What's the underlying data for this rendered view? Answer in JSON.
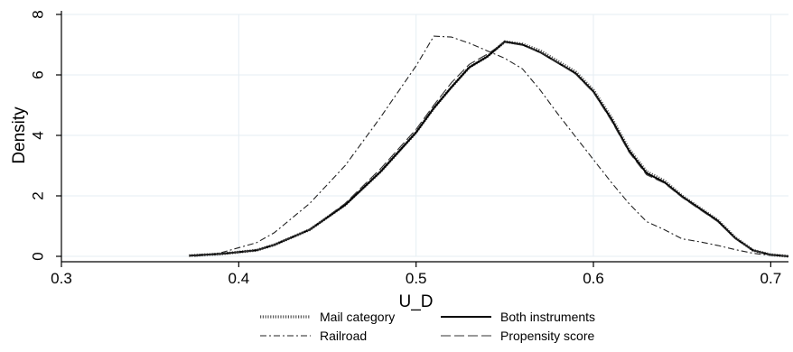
{
  "chart_data": {
    "type": "line",
    "title": "",
    "xlabel": "U_D",
    "ylabel": "Density",
    "xlim": [
      0.3,
      0.71
    ],
    "ylim": [
      0,
      8
    ],
    "x_ticks": [
      "0.3",
      "0.4",
      "0.5",
      "0.6",
      "0.7"
    ],
    "y_ticks": [
      "0",
      "2",
      "4",
      "6",
      "8"
    ],
    "grid": true,
    "legend_position": "bottom",
    "series": [
      {
        "name": "Mail category",
        "style": "dotted",
        "color": "#555555",
        "points": [
          [
            0.372,
            0.02
          ],
          [
            0.39,
            0.08
          ],
          [
            0.41,
            0.2
          ],
          [
            0.42,
            0.38
          ],
          [
            0.44,
            0.88
          ],
          [
            0.46,
            1.7
          ],
          [
            0.48,
            2.8
          ],
          [
            0.5,
            4.1
          ],
          [
            0.51,
            4.9
          ],
          [
            0.52,
            5.6
          ],
          [
            0.53,
            6.25
          ],
          [
            0.54,
            6.6
          ],
          [
            0.55,
            7.1
          ],
          [
            0.56,
            7.02
          ],
          [
            0.57,
            6.8
          ],
          [
            0.58,
            6.45
          ],
          [
            0.59,
            6.1
          ],
          [
            0.6,
            5.5
          ],
          [
            0.61,
            4.6
          ],
          [
            0.62,
            3.55
          ],
          [
            0.63,
            2.8
          ],
          [
            0.64,
            2.5
          ],
          [
            0.65,
            2.0
          ],
          [
            0.66,
            1.6
          ],
          [
            0.67,
            1.2
          ],
          [
            0.68,
            0.62
          ],
          [
            0.69,
            0.2
          ],
          [
            0.7,
            0.05
          ],
          [
            0.71,
            0.0
          ]
        ]
      },
      {
        "name": "Both instruments",
        "style": "solid",
        "color": "#000000",
        "points": [
          [
            0.372,
            0.02
          ],
          [
            0.39,
            0.08
          ],
          [
            0.41,
            0.2
          ],
          [
            0.42,
            0.38
          ],
          [
            0.44,
            0.88
          ],
          [
            0.46,
            1.7
          ],
          [
            0.48,
            2.8
          ],
          [
            0.5,
            4.1
          ],
          [
            0.51,
            4.9
          ],
          [
            0.52,
            5.6
          ],
          [
            0.53,
            6.25
          ],
          [
            0.54,
            6.6
          ],
          [
            0.55,
            7.1
          ],
          [
            0.56,
            7.0
          ],
          [
            0.57,
            6.75
          ],
          [
            0.58,
            6.4
          ],
          [
            0.59,
            6.05
          ],
          [
            0.6,
            5.45
          ],
          [
            0.61,
            4.55
          ],
          [
            0.62,
            3.5
          ],
          [
            0.63,
            2.75
          ],
          [
            0.64,
            2.45
          ],
          [
            0.65,
            1.98
          ],
          [
            0.66,
            1.58
          ],
          [
            0.67,
            1.18
          ],
          [
            0.68,
            0.6
          ],
          [
            0.69,
            0.2
          ],
          [
            0.7,
            0.05
          ],
          [
            0.71,
            0.0
          ]
        ]
      },
      {
        "name": "Railroad",
        "style": "dashdot",
        "color": "#222222",
        "points": [
          [
            0.375,
            0.0
          ],
          [
            0.39,
            0.12
          ],
          [
            0.41,
            0.45
          ],
          [
            0.42,
            0.78
          ],
          [
            0.44,
            1.75
          ],
          [
            0.46,
            3.0
          ],
          [
            0.48,
            4.6
          ],
          [
            0.49,
            5.45
          ],
          [
            0.5,
            6.3
          ],
          [
            0.51,
            7.28
          ],
          [
            0.52,
            7.25
          ],
          [
            0.53,
            7.05
          ],
          [
            0.54,
            6.8
          ],
          [
            0.55,
            6.55
          ],
          [
            0.56,
            6.2
          ],
          [
            0.57,
            5.5
          ],
          [
            0.58,
            4.7
          ],
          [
            0.59,
            3.95
          ],
          [
            0.6,
            3.2
          ],
          [
            0.61,
            2.45
          ],
          [
            0.62,
            1.75
          ],
          [
            0.63,
            1.15
          ],
          [
            0.64,
            0.88
          ],
          [
            0.65,
            0.58
          ],
          [
            0.66,
            0.48
          ],
          [
            0.67,
            0.36
          ],
          [
            0.68,
            0.22
          ],
          [
            0.69,
            0.1
          ],
          [
            0.7,
            0.03
          ],
          [
            0.71,
            0.0
          ]
        ]
      },
      {
        "name": "Propensity score",
        "style": "longdash",
        "color": "#333333",
        "points": [
          [
            0.372,
            0.02
          ],
          [
            0.39,
            0.08
          ],
          [
            0.41,
            0.2
          ],
          [
            0.42,
            0.38
          ],
          [
            0.44,
            0.88
          ],
          [
            0.46,
            1.75
          ],
          [
            0.48,
            2.9
          ],
          [
            0.5,
            4.2
          ],
          [
            0.51,
            5.0
          ],
          [
            0.52,
            5.75
          ],
          [
            0.53,
            6.35
          ],
          [
            0.54,
            6.68
          ],
          [
            0.55,
            7.08
          ],
          [
            0.56,
            6.98
          ],
          [
            0.57,
            6.75
          ],
          [
            0.58,
            6.4
          ],
          [
            0.59,
            6.02
          ],
          [
            0.6,
            5.42
          ],
          [
            0.61,
            4.5
          ],
          [
            0.62,
            3.45
          ],
          [
            0.63,
            2.7
          ],
          [
            0.64,
            2.42
          ],
          [
            0.65,
            1.95
          ],
          [
            0.66,
            1.55
          ],
          [
            0.67,
            1.15
          ],
          [
            0.68,
            0.58
          ],
          [
            0.69,
            0.2
          ],
          [
            0.7,
            0.05
          ],
          [
            0.71,
            0.0
          ]
        ]
      }
    ]
  }
}
